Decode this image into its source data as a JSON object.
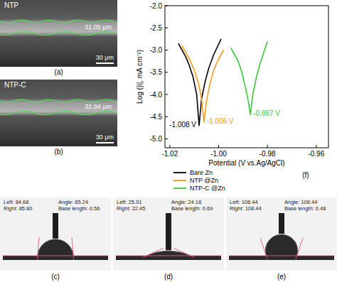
{
  "chart_data": {
    "type": "line",
    "xlabel": "Potential (V vs.Ag/AgCl)",
    "ylabel": "Log (|i|, mA cm⁻²)",
    "panel_label": "(f)",
    "xlim": [
      -1.022,
      -0.955
    ],
    "ylim": [
      -5.2,
      -2.0
    ],
    "xticks": [
      -1.02,
      {
        "value": -1,
        "label": "-1.00"
      },
      -0.98,
      -0.96
    ],
    "yticks": [
      {
        "value": -2,
        "label": "-2.0"
      },
      -2.5,
      {
        "value": -3,
        "label": "-3.0"
      },
      -3.5,
      {
        "value": -4,
        "label": "-4.0"
      },
      -4.5,
      {
        "value": -5,
        "label": "-5.0"
      }
    ],
    "legend": "lower left",
    "series": [
      {
        "name": "Bare Zn",
        "color": "#000000",
        "annotation": "-1.008 V",
        "x": [
          -1.0165,
          -1.015,
          -1.0135,
          -1.012,
          -1.0105,
          -1.009,
          -1.008,
          -1.007,
          -1.0055,
          -1.004,
          -1.002,
          -0.999
        ],
        "values": [
          -2.85,
          -3.0,
          -3.15,
          -3.35,
          -3.6,
          -4.0,
          -4.7,
          -4.1,
          -3.7,
          -3.4,
          -3.1,
          -2.75
        ]
      },
      {
        "name": "NTP @Zn",
        "color": "#f39a1e",
        "annotation": "-1.006 V",
        "x": [
          -1.015,
          -1.0135,
          -1.012,
          -1.01,
          -1.008,
          -1.007,
          -1.006,
          -1.005,
          -1.0035,
          -1.002,
          -1.0,
          -0.998
        ],
        "values": [
          -2.9,
          -3.05,
          -3.2,
          -3.45,
          -3.8,
          -4.1,
          -4.62,
          -4.15,
          -3.75,
          -3.45,
          -3.2,
          -3.0
        ]
      },
      {
        "name": "NTP-C @Zn",
        "color": "#3cc83c",
        "annotation": "-0.987 V",
        "x": [
          -0.995,
          -0.9935,
          -0.992,
          -0.9905,
          -0.989,
          -0.988,
          -0.987,
          -0.986,
          -0.9845,
          -0.983,
          -0.9815,
          -0.98
        ],
        "values": [
          -2.95,
          -3.1,
          -3.25,
          -3.5,
          -3.85,
          -4.1,
          -4.45,
          -4.0,
          -3.6,
          -3.3,
          -3.05,
          -2.8
        ]
      }
    ]
  },
  "images": [
    {
      "label": "(a)",
      "sample": "NTP",
      "thickness": "31.05 μm",
      "scale_bar": "30 μm"
    },
    {
      "label": "(b)",
      "sample": "NTP-C",
      "thickness": "32.94 μm",
      "scale_bar": "30 μm"
    }
  ],
  "contact_angle_labels": {
    "left": "Left:",
    "right": "Right:",
    "angle": "Angle:",
    "base_length": "Base length:"
  },
  "contact_angles": [
    {
      "label": "(c)",
      "left": "84.68",
      "right": "85.80",
      "angle": "85.24",
      "base_length": "0.56"
    },
    {
      "label": "(d)",
      "left": "25.91",
      "right": "22.45",
      "angle": "24.18",
      "base_length": "0.69"
    },
    {
      "label": "(e)",
      "left": "108.44",
      "right": "108.44",
      "angle": "108.44",
      "base_length": "0.48"
    }
  ]
}
